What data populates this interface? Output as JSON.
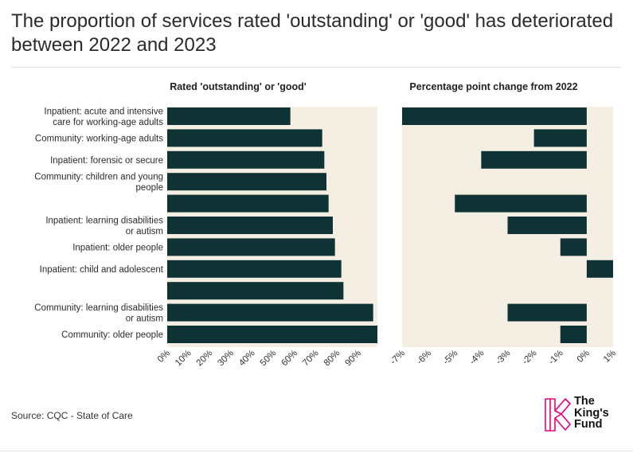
{
  "title": "The proportion of services rated 'outstanding' or 'good' has deteriorated between 2022 and 2023",
  "source": "Source: CQC - State of Care",
  "logo": {
    "line1": "The",
    "line2": "King's",
    "line3": "Fund"
  },
  "colors": {
    "bar": "#0f3334",
    "panel_bg": "#f5efe3",
    "text": "#222222",
    "logo_pink": "#e6007e"
  },
  "chart_data": [
    {
      "type": "bar",
      "orientation": "horizontal",
      "title": "Rated 'outstanding' or 'good'",
      "categories": [
        "Inpatient: acute and intensive care for working-age adults",
        "Community: working-age adults",
        "Inpatient: forensic or secure",
        "Community: children and young people",
        "",
        "Inpatient: learning disabilities or autism",
        "Inpatient: older people",
        "Inpatient: child and adolescent",
        "",
        "Community: learning disabilities or autism",
        "Community: older people"
      ],
      "values": [
        58,
        73,
        74,
        75,
        76,
        78,
        79,
        82,
        83,
        97,
        99
      ],
      "xlim": [
        0,
        99
      ],
      "ticks": [
        "0%",
        "10%",
        "20%",
        "30%",
        "40%",
        "50%",
        "60%",
        "70%",
        "80%",
        "90%"
      ],
      "tick_values": [
        0,
        10,
        20,
        30,
        40,
        50,
        60,
        70,
        80,
        90
      ]
    },
    {
      "type": "bar",
      "orientation": "horizontal",
      "title": "Percentage point change from 2022",
      "values": [
        -7,
        -2,
        -4,
        null,
        -5,
        -3,
        -1,
        1,
        null,
        -3,
        -1
      ],
      "xlim": [
        -7,
        1
      ],
      "ticks": [
        "-7%",
        "-6%",
        "-5%",
        "-4%",
        "-3%",
        "-2%",
        "-1%",
        "0%",
        "1%"
      ],
      "tick_values": [
        -7,
        -6,
        -5,
        -4,
        -3,
        -2,
        -1,
        0,
        1
      ]
    }
  ]
}
